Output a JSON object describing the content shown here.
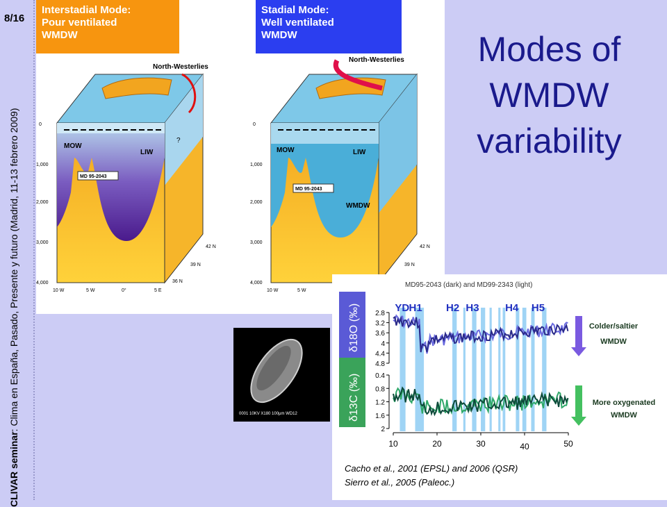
{
  "slide": {
    "number": "8/16",
    "seminar_bold": "CLIVAR seminar",
    "seminar_rest": ": Clima en España, Pasado, Presente y futuro (Madrid, 11-13 febrero 2009)",
    "title_lines": [
      "Modes of",
      "WMDW",
      "variability"
    ]
  },
  "interstadial": {
    "line1": "Interstadial Mode:",
    "line2": "Pour ventilated",
    "line3": "WMDW",
    "color": "#f7950f"
  },
  "stadial": {
    "line1": "Stadial Mode:",
    "line2": "Well ventilated",
    "line3": "WMDW",
    "color": "#2b3ef0"
  },
  "diagram_left": {
    "wind": "North-Westerlies",
    "mow": "MOW",
    "liw": "LIW",
    "core": "MD 95-2043",
    "question": "?",
    "depths": [
      "0",
      "1,000",
      "2,000",
      "3,000",
      "4,000"
    ],
    "lons": [
      "10 W",
      "5 W",
      "0°",
      "5 E"
    ],
    "lats": [
      "42 N",
      "39 N",
      "36 N"
    ]
  },
  "diagram_right": {
    "wind": "North-Westerlies",
    "mow": "MOW",
    "liw": "LIW",
    "wmdw": "WMDW",
    "core": "MD 95-2043",
    "depths": [
      "0",
      "1,000",
      "2,000",
      "3,000",
      "4,000"
    ],
    "lons": [
      "10 W",
      "5 W"
    ],
    "lats": [
      "42 N",
      "39 N"
    ]
  },
  "micro": {
    "caption": "0001 10KV   X180 100µm WD12"
  },
  "chart_data": {
    "type": "line",
    "title": "MD95-2043 (dark) and MD99-2343 (light)",
    "x_ticks": [
      "10",
      "20",
      "30",
      "40",
      "50"
    ],
    "xlim": [
      10,
      50
    ],
    "events": [
      "YD",
      "H1",
      "H2",
      "H3",
      "H4",
      "H5"
    ],
    "panels": [
      {
        "ylabel": "δ18O (‰)",
        "y_ticks": [
          "2.8",
          "3.2",
          "3.6",
          "4",
          "4.4",
          "4.8"
        ],
        "ylim": [
          2.8,
          4.8
        ],
        "inverted": true,
        "arrow_label_1": "Colder/saltier",
        "arrow_label_2": "WMDW"
      },
      {
        "ylabel": "δ13C (‰)",
        "y_ticks": [
          "0.4",
          "0.8",
          "1.2",
          "1.6",
          "2"
        ],
        "ylim": [
          0.4,
          2
        ],
        "inverted": true,
        "arrow_label_1": "More oxygenated",
        "arrow_label_2": "WMDW"
      }
    ],
    "refs": [
      "Cacho et al., 2001 (EPSL) and 2006 (QSR)",
      "Sierro et al., 2005 (Paleoc.)"
    ]
  },
  "colors": {
    "slide_bg": "#ccccf5",
    "title": "#1a1a8c",
    "o18_label_bg": "#5a5ad6",
    "c13_label_bg": "#3aa35a",
    "band": "#9fd4f5",
    "dark_blue": "#2a2a8a",
    "light_blue": "#6a6ae0",
    "dark_green": "#0d4a3a",
    "light_green": "#2ea868"
  }
}
